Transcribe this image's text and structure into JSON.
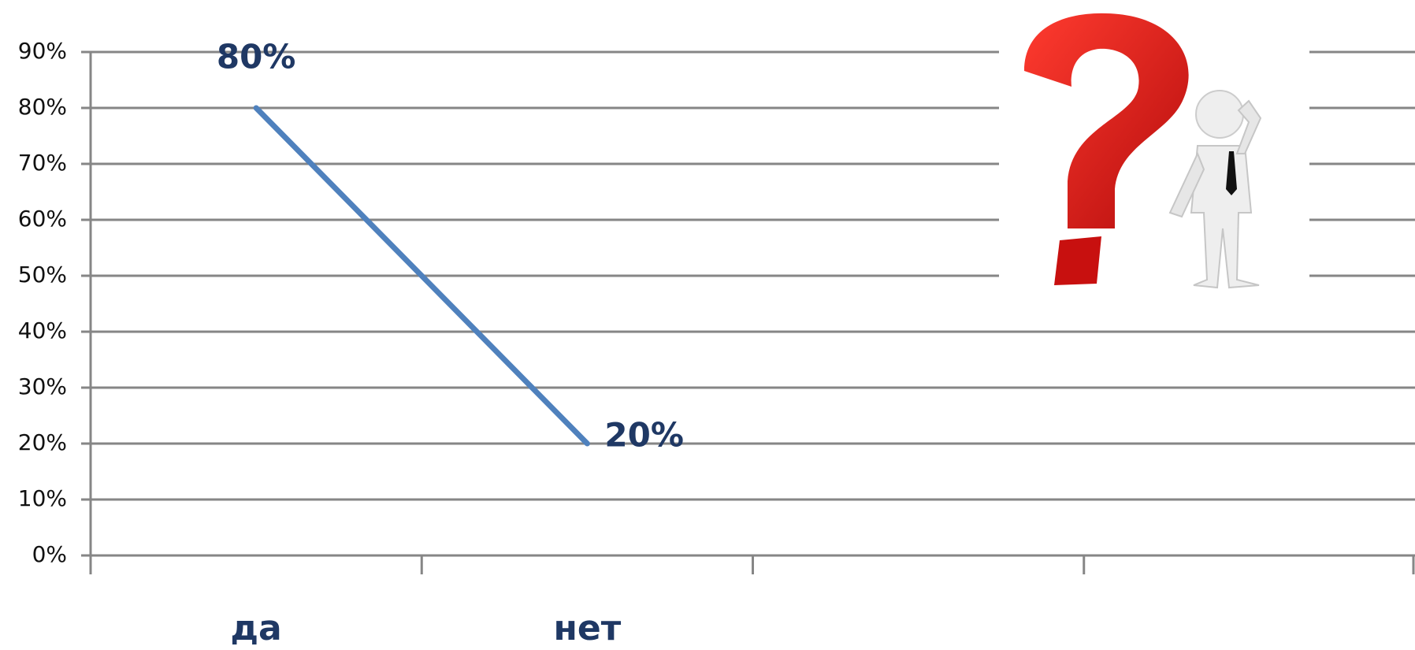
{
  "chart_data": {
    "type": "line",
    "categories": [
      "да",
      "нет",
      null,
      null
    ],
    "values": [
      80,
      20,
      null,
      null
    ],
    "value_labels": [
      "80%",
      "20%",
      null,
      null
    ],
    "color": "#4f81bd",
    "ylim": [
      0,
      90
    ],
    "yticks": [
      {
        "value": 0,
        "label": "0%"
      },
      {
        "value": 10,
        "label": "10%"
      },
      {
        "value": 20,
        "label": "20%"
      },
      {
        "value": 30,
        "label": "30%"
      },
      {
        "value": 40,
        "label": "40%"
      },
      {
        "value": 50,
        "label": "50%"
      },
      {
        "value": 60,
        "label": "60%"
      },
      {
        "value": 70,
        "label": "70%"
      },
      {
        "value": 80,
        "label": "80%"
      },
      {
        "value": 90,
        "label": "90%"
      }
    ],
    "grid": true
  }
}
